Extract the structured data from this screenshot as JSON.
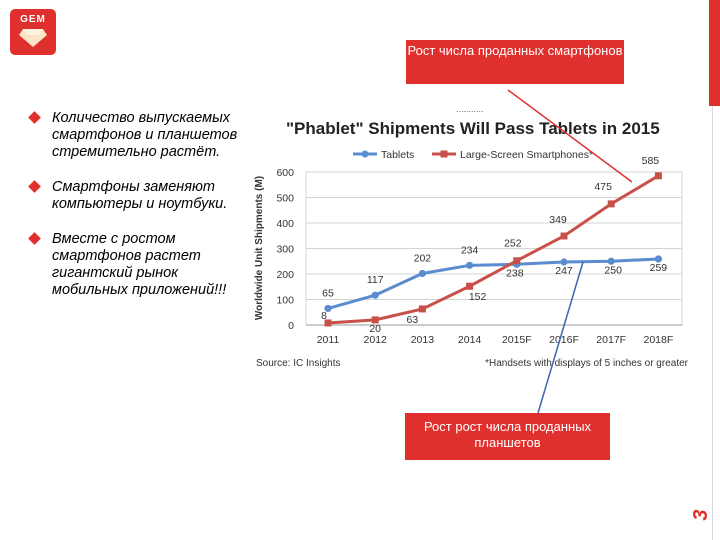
{
  "logo": {
    "text": "GEM"
  },
  "page_number": "3",
  "callout_top": "Рост числа проданных смартфонов",
  "callout_bottom": "Рост рост числа проданных планшетов",
  "bullets": [
    "Количество выпускаемых смартфонов и планшетов стремительно растёт.",
    "Смартфоны заменяют компьютеры и ноутбуки.",
    "Вместе с ростом смартфонов растет гигантский рынок мобильных приложений!!!"
  ],
  "colors": {
    "accent": "#e0302d",
    "tablets": "#5b8ccf",
    "smartphones": "#c9504a"
  },
  "chart_data": {
    "type": "line",
    "title": "\"Phablet\" Shipments Will Pass Tablets in 2015",
    "ylabel": "Worldwide Unit Shipments (M)",
    "xlabel": "",
    "categories": [
      "2011",
      "2012",
      "2013",
      "2014",
      "2015F",
      "2016F",
      "2017F",
      "2018F"
    ],
    "ylim": [
      0,
      600
    ],
    "yticks": [
      "0",
      "100",
      "200",
      "300",
      "400",
      "500",
      "600"
    ],
    "grid": true,
    "legend": "top",
    "series": [
      {
        "name": "Tablets",
        "values": [
          65,
          117,
          202,
          234,
          238,
          247,
          250,
          259
        ]
      },
      {
        "name": "Large-Screen Smartphones*",
        "values": [
          8,
          20,
          63,
          152,
          252,
          349,
          475,
          585
        ]
      }
    ],
    "source": "Source: IC Insights",
    "footnote": "*Handsets with displays of 5 inches or greater",
    "dots": "..........."
  }
}
